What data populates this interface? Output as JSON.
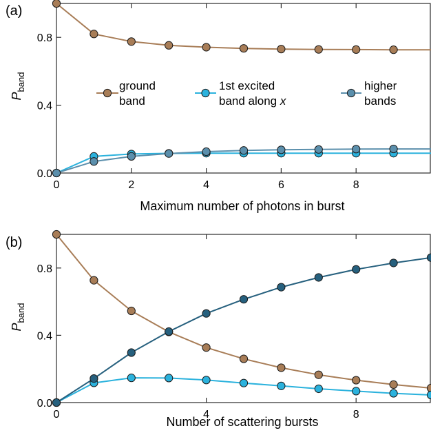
{
  "chart_data": [
    {
      "type": "line",
      "panel_label": "(a)",
      "xlabel": "Maximum number of photons in burst",
      "ylabel_main": "P",
      "ylabel_sub": "band",
      "xlim": [
        0,
        10
      ],
      "ylim": [
        0,
        1
      ],
      "xticks": [
        0,
        2,
        4,
        6,
        8
      ],
      "xtick_labels": [
        "0",
        "2",
        "4",
        "6",
        "8"
      ],
      "yticks": [
        0,
        0.4,
        0.8
      ],
      "ytick_labels": [
        "0.0",
        "0.4",
        "0.8"
      ],
      "legend_placement": "center",
      "series": [
        {
          "name_lines": [
            "ground",
            "band"
          ],
          "color": "#a87d57",
          "line": {
            "x": [
              0,
              1,
              2,
              3,
              4,
              5,
              6,
              7,
              8,
              9,
              10
            ],
            "y": [
              1.0,
              0.82,
              0.775,
              0.753,
              0.742,
              0.735,
              0.731,
              0.729,
              0.728,
              0.727,
              0.727
            ]
          },
          "points": {
            "x": [
              0,
              1,
              2,
              3,
              4,
              5,
              6,
              7,
              8,
              9
            ],
            "y": [
              1.0,
              0.82,
              0.775,
              0.753,
              0.742,
              0.735,
              0.731,
              0.729,
              0.728,
              0.727
            ]
          }
        },
        {
          "name_lines": [
            "1st excited",
            "band along x"
          ],
          "color": "#2bb2dd",
          "line": {
            "x": [
              0,
              1,
              2,
              3,
              4,
              5,
              6,
              7,
              8,
              9,
              10
            ],
            "y": [
              0.0,
              0.098,
              0.112,
              0.116,
              0.117,
              0.117,
              0.117,
              0.117,
              0.117,
              0.117,
              0.117
            ]
          },
          "points": {
            "x": [
              0,
              1,
              2,
              3,
              4,
              5,
              6,
              7,
              8,
              9
            ],
            "y": [
              0.0,
              0.098,
              0.112,
              0.116,
              0.117,
              0.117,
              0.117,
              0.117,
              0.117,
              0.117
            ]
          }
        },
        {
          "name_lines": [
            "higher",
            "bands"
          ],
          "color": "#5b8fac",
          "line": {
            "x": [
              0,
              1,
              2,
              3,
              4,
              5,
              6,
              7,
              8,
              9,
              10
            ],
            "y": [
              0.0,
              0.068,
              0.098,
              0.115,
              0.126,
              0.133,
              0.137,
              0.139,
              0.141,
              0.142,
              0.142
            ]
          },
          "points": {
            "x": [
              0,
              1,
              2,
              3,
              4,
              5,
              6,
              7,
              8,
              9
            ],
            "y": [
              0.0,
              0.068,
              0.098,
              0.115,
              0.126,
              0.133,
              0.137,
              0.139,
              0.141,
              0.142
            ]
          }
        }
      ]
    },
    {
      "type": "line",
      "panel_label": "(b)",
      "xlabel": "Number of scattering bursts",
      "ylabel_main": "P",
      "ylabel_sub": "band",
      "xlim": [
        0,
        10
      ],
      "ylim": [
        0,
        1
      ],
      "xticks": [
        0,
        4,
        8
      ],
      "xtick_labels": [
        "0",
        "4",
        "8"
      ],
      "yticks": [
        0,
        0.4,
        0.8
      ],
      "ytick_labels": [
        "0.0",
        "0.4",
        "0.8"
      ],
      "series": [
        {
          "color": "#a87d57",
          "line": {
            "x": [
              0,
              1,
              2,
              3,
              4,
              5,
              6,
              7,
              8,
              9,
              10
            ],
            "y": [
              1.0,
              0.727,
              0.545,
              0.42,
              0.327,
              0.26,
              0.207,
              0.165,
              0.133,
              0.107,
              0.086
            ]
          },
          "points": {
            "x": [
              0,
              1,
              2,
              3,
              4,
              5,
              6,
              7,
              8,
              9,
              10
            ],
            "y": [
              1.0,
              0.727,
              0.545,
              0.42,
              0.327,
              0.26,
              0.207,
              0.165,
              0.133,
              0.107,
              0.086
            ]
          }
        },
        {
          "color": "#2bb2dd",
          "line": {
            "x": [
              0,
              1,
              2,
              3,
              4,
              5,
              6,
              7,
              8,
              9,
              10
            ],
            "y": [
              0.0,
              0.117,
              0.147,
              0.146,
              0.134,
              0.116,
              0.099,
              0.082,
              0.068,
              0.055,
              0.045
            ]
          },
          "points": {
            "x": [
              0,
              1,
              2,
              3,
              4,
              5,
              6,
              7,
              8,
              9,
              10
            ],
            "y": [
              0.0,
              0.117,
              0.147,
              0.146,
              0.134,
              0.116,
              0.099,
              0.082,
              0.068,
              0.055,
              0.045
            ]
          }
        },
        {
          "color": "#26607e",
          "line": {
            "x": [
              0,
              1,
              2,
              3,
              4,
              5,
              6,
              7,
              8,
              9,
              10
            ],
            "y": [
              0.0,
              0.143,
              0.297,
              0.422,
              0.53,
              0.614,
              0.686,
              0.744,
              0.792,
              0.83,
              0.862
            ]
          },
          "points": {
            "x": [
              0,
              1,
              2,
              3,
              4,
              5,
              6,
              7,
              8,
              9,
              10
            ],
            "y": [
              0.0,
              0.143,
              0.297,
              0.422,
              0.53,
              0.614,
              0.686,
              0.744,
              0.792,
              0.83,
              0.862
            ]
          }
        }
      ]
    }
  ]
}
